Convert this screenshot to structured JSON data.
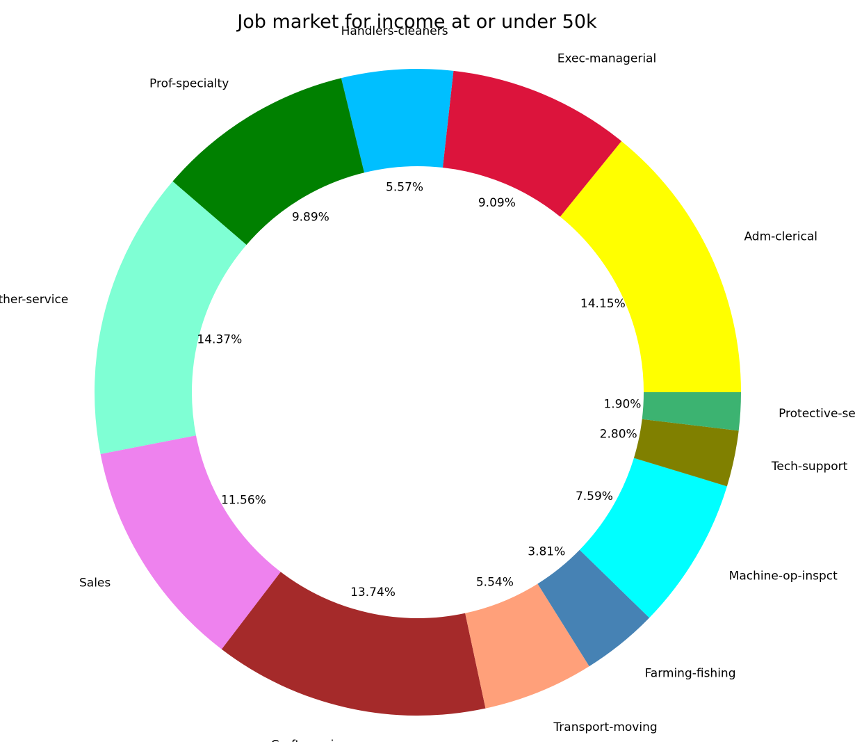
{
  "chart_data": {
    "type": "pie",
    "subtype": "donut",
    "title": "Job market for income at or under 50k",
    "start_angle_deg": 0,
    "direction": "counterclockwise",
    "slices": [
      {
        "label": "Adm-clerical",
        "value": 14.15,
        "pct_label": "14.15%",
        "color": "#FFFF00"
      },
      {
        "label": "Exec-managerial",
        "value": 9.09,
        "pct_label": "9.09%",
        "color": "#DC143C"
      },
      {
        "label": "Handlers-cleaners",
        "value": 5.57,
        "pct_label": "5.57%",
        "color": "#00BFFF"
      },
      {
        "label": "Prof-specialty",
        "value": 9.89,
        "pct_label": "9.89%",
        "color": "#008000"
      },
      {
        "label": "Other-service",
        "value": 14.37,
        "pct_label": "14.37%",
        "color": "#7FFFD4"
      },
      {
        "label": "Sales",
        "value": 11.56,
        "pct_label": "11.56%",
        "color": "#EE82EE"
      },
      {
        "label": "Craft-repair",
        "value": 13.74,
        "pct_label": "13.74%",
        "color": "#A52A2A"
      },
      {
        "label": "Transport-moving",
        "value": 5.54,
        "pct_label": "5.54%",
        "color": "#FFA07A"
      },
      {
        "label": "Farming-fishing",
        "value": 3.81,
        "pct_label": "3.81%",
        "color": "#4682B4"
      },
      {
        "label": "Machine-op-inspct",
        "value": 7.59,
        "pct_label": "7.59%",
        "color": "#00FFFF"
      },
      {
        "label": "Tech-support",
        "value": 2.8,
        "pct_label": "2.80%",
        "color": "#808000"
      },
      {
        "label": "Protective-serv",
        "value": 1.9,
        "pct_label": "1.90%",
        "color": "#3CB371"
      }
    ]
  }
}
